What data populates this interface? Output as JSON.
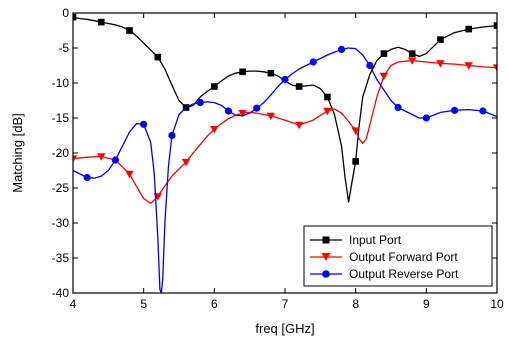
{
  "chart_data": {
    "type": "line",
    "title": "",
    "xlabel": "freq [GHz]",
    "ylabel": "Matching [dB]",
    "xlim": [
      4,
      10
    ],
    "ylim": [
      -40,
      0
    ],
    "xticks": [
      4,
      5,
      6,
      7,
      8,
      9,
      10
    ],
    "yticks": [
      0,
      -5,
      -10,
      -15,
      -20,
      -25,
      -30,
      -35,
      -40
    ],
    "grid": false,
    "legend_position": "bottom-right",
    "series": [
      {
        "name": "Input Port",
        "color": "#000000",
        "marker": "square",
        "x": [
          4.0,
          4.1,
          4.2,
          4.3,
          4.4,
          4.5,
          4.6,
          4.7,
          4.8,
          4.9,
          5.0,
          5.1,
          5.2,
          5.3,
          5.4,
          5.5,
          5.6,
          5.7,
          5.8,
          5.9,
          6.0,
          6.1,
          6.2,
          6.3,
          6.4,
          6.5,
          6.6,
          6.7,
          6.8,
          6.9,
          7.0,
          7.1,
          7.2,
          7.3,
          7.4,
          7.5,
          7.6,
          7.7,
          7.8,
          7.85,
          7.9,
          7.95,
          8.0,
          8.05,
          8.1,
          8.2,
          8.3,
          8.4,
          8.5,
          8.6,
          8.7,
          8.8,
          8.9,
          9.0,
          9.2,
          9.4,
          9.6,
          9.8,
          10.0
        ],
        "values": [
          -0.6,
          -0.8,
          -0.9,
          -1.1,
          -1.3,
          -1.5,
          -1.7,
          -2.0,
          -2.5,
          -3.3,
          -4.3,
          -5.3,
          -6.3,
          -8.0,
          -10.3,
          -12.5,
          -13.5,
          -13.2,
          -12.0,
          -11.2,
          -10.5,
          -9.7,
          -9.0,
          -8.6,
          -8.4,
          -8.3,
          -8.3,
          -8.4,
          -8.6,
          -9.0,
          -9.7,
          -10.3,
          -10.5,
          -10.4,
          -10.3,
          -10.8,
          -12.0,
          -14.5,
          -19.0,
          -23.5,
          -27.0,
          -24.0,
          -21.2,
          -16.0,
          -12.0,
          -8.8,
          -6.8,
          -5.8,
          -5.2,
          -4.9,
          -5.2,
          -5.8,
          -6.2,
          -5.8,
          -3.8,
          -2.8,
          -2.3,
          -2.0,
          -1.8
        ]
      },
      {
        "name": "Output Forward Port",
        "color": "#ff0000",
        "marker": "triangle-down",
        "x": [
          4.0,
          4.2,
          4.4,
          4.6,
          4.8,
          4.9,
          5.0,
          5.1,
          5.2,
          5.3,
          5.4,
          5.5,
          5.6,
          5.7,
          5.8,
          5.9,
          6.0,
          6.1,
          6.2,
          6.3,
          6.4,
          6.5,
          6.6,
          6.8,
          7.0,
          7.2,
          7.4,
          7.6,
          7.7,
          7.8,
          7.9,
          8.0,
          8.05,
          8.1,
          8.15,
          8.2,
          8.3,
          8.4,
          8.5,
          8.6,
          8.8,
          9.0,
          9.2,
          9.4,
          9.6,
          9.8,
          10.0
        ],
        "values": [
          -20.8,
          -20.6,
          -20.5,
          -21.0,
          -23.0,
          -24.8,
          -26.5,
          -27.2,
          -26.2,
          -24.7,
          -23.3,
          -22.3,
          -21.3,
          -20.0,
          -18.8,
          -17.6,
          -16.6,
          -15.8,
          -15.1,
          -14.6,
          -14.3,
          -14.2,
          -14.3,
          -14.7,
          -15.3,
          -16.0,
          -15.3,
          -14.0,
          -13.7,
          -14.3,
          -15.5,
          -16.8,
          -18.0,
          -18.6,
          -18.0,
          -16.0,
          -12.0,
          -9.0,
          -7.5,
          -7.0,
          -6.8,
          -7.0,
          -7.2,
          -7.3,
          -7.5,
          -7.7,
          -7.8
        ]
      },
      {
        "name": "Output Reverse Port",
        "color": "#0000ff",
        "marker": "circle",
        "x": [
          4.0,
          4.1,
          4.2,
          4.3,
          4.4,
          4.5,
          4.6,
          4.7,
          4.8,
          4.9,
          5.0,
          5.1,
          5.15,
          5.2,
          5.23,
          5.25,
          5.27,
          5.3,
          5.35,
          5.4,
          5.5,
          5.6,
          5.7,
          5.8,
          5.9,
          6.0,
          6.1,
          6.2,
          6.3,
          6.4,
          6.5,
          6.6,
          6.7,
          6.8,
          6.9,
          7.0,
          7.1,
          7.2,
          7.4,
          7.6,
          7.8,
          7.9,
          8.0,
          8.1,
          8.2,
          8.3,
          8.4,
          8.5,
          8.6,
          8.7,
          8.8,
          8.9,
          9.0,
          9.2,
          9.4,
          9.6,
          9.8,
          10.0
        ],
        "values": [
          -22.5,
          -23.0,
          -23.5,
          -23.6,
          -23.3,
          -22.5,
          -21.0,
          -19.0,
          -17.0,
          -15.8,
          -15.9,
          -18.5,
          -23.0,
          -32.0,
          -39.5,
          -40.0,
          -38.0,
          -30.0,
          -22.0,
          -17.5,
          -14.5,
          -13.5,
          -13.0,
          -12.8,
          -12.7,
          -12.8,
          -13.2,
          -14.0,
          -14.6,
          -14.7,
          -14.3,
          -13.6,
          -12.8,
          -11.7,
          -10.5,
          -9.5,
          -8.7,
          -8.0,
          -7.0,
          -6.0,
          -5.2,
          -5.0,
          -5.1,
          -6.0,
          -7.5,
          -9.5,
          -11.0,
          -12.5,
          -13.5,
          -14.0,
          -14.5,
          -15.0,
          -15.0,
          -14.2,
          -13.9,
          -13.8,
          -14.0,
          -14.8
        ]
      }
    ]
  }
}
